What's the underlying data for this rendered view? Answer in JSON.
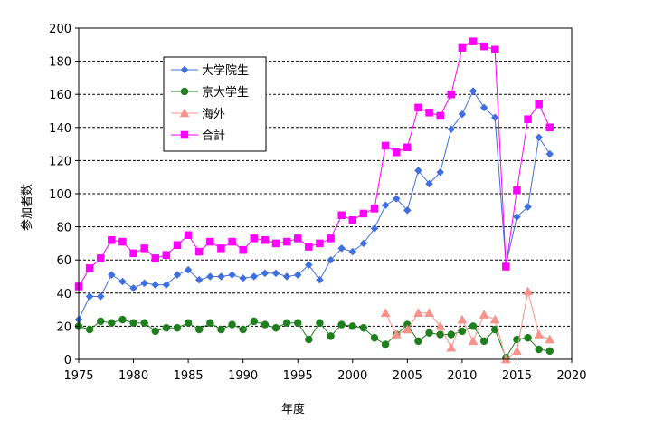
{
  "chart_data": {
    "type": "line",
    "xlabel": "年度",
    "ylabel": "参加者数",
    "xlim": [
      1975,
      2020
    ],
    "ylim": [
      0,
      200
    ],
    "xticks": [
      1975,
      1980,
      1985,
      1990,
      1995,
      2000,
      2005,
      2010,
      2015,
      2020
    ],
    "yticks": [
      0,
      20,
      40,
      60,
      80,
      100,
      120,
      140,
      160,
      180,
      200
    ],
    "grid": "horizontal dashed",
    "legend_position": "top-left",
    "series": [
      {
        "name": "大学院生",
        "color": "#3f6fdf",
        "marker": "diamond",
        "x": [
          1975,
          1976,
          1977,
          1978,
          1979,
          1980,
          1981,
          1982,
          1983,
          1984,
          1985,
          1986,
          1987,
          1988,
          1989,
          1990,
          1991,
          1992,
          1993,
          1994,
          1995,
          1996,
          1997,
          1998,
          1999,
          2000,
          2001,
          2002,
          2003,
          2004,
          2005,
          2006,
          2007,
          2008,
          2009,
          2010,
          2011,
          2012,
          2013,
          2014,
          2015,
          2016,
          2017,
          2018
        ],
        "values": [
          24,
          38,
          38,
          51,
          47,
          43,
          46,
          45,
          45,
          51,
          54,
          48,
          50,
          50,
          51,
          49,
          50,
          52,
          52,
          50,
          51,
          57,
          48,
          60,
          67,
          65,
          70,
          79,
          93,
          97,
          90,
          114,
          106,
          113,
          139,
          148,
          162,
          152,
          146,
          57,
          86,
          92,
          134,
          124
        ]
      },
      {
        "name": "京大学生",
        "color": "#1f7f1f",
        "marker": "circle",
        "x": [
          1975,
          1976,
          1977,
          1978,
          1979,
          1980,
          1981,
          1982,
          1983,
          1984,
          1985,
          1986,
          1987,
          1988,
          1989,
          1990,
          1991,
          1992,
          1993,
          1994,
          1995,
          1996,
          1997,
          1998,
          1999,
          2000,
          2001,
          2002,
          2003,
          2004,
          2005,
          2006,
          2007,
          2008,
          2009,
          2010,
          2011,
          2012,
          2013,
          2014,
          2015,
          2016,
          2017,
          2018
        ],
        "values": [
          20,
          18,
          23,
          22,
          24,
          22,
          22,
          17,
          19,
          19,
          22,
          18,
          22,
          18,
          21,
          18,
          23,
          21,
          19,
          22,
          22,
          12,
          22,
          14,
          21,
          20,
          19,
          13,
          9,
          15,
          21,
          11,
          16,
          15,
          15,
          17,
          20,
          11,
          18,
          1,
          12,
          13,
          6,
          5
        ]
      },
      {
        "name": "海外",
        "color": "#f8938c",
        "marker": "triangle",
        "x": [
          2003,
          2004,
          2005,
          2006,
          2007,
          2008,
          2009,
          2010,
          2011,
          2012,
          2013,
          2014,
          2015,
          2016,
          2017,
          2018
        ],
        "values": [
          28,
          15,
          18,
          28,
          28,
          20,
          7,
          24,
          11,
          27,
          24,
          0,
          5,
          41,
          15,
          12
        ]
      },
      {
        "name": "合計",
        "color": "#ff00ff",
        "marker": "square",
        "x": [
          1975,
          1976,
          1977,
          1978,
          1979,
          1980,
          1981,
          1982,
          1983,
          1984,
          1985,
          1986,
          1987,
          1988,
          1989,
          1990,
          1991,
          1992,
          1993,
          1994,
          1995,
          1996,
          1997,
          1998,
          1999,
          2000,
          2001,
          2002,
          2003,
          2004,
          2005,
          2006,
          2007,
          2008,
          2009,
          2010,
          2011,
          2012,
          2013,
          2014,
          2015,
          2016,
          2017,
          2018
        ],
        "values": [
          44,
          55,
          61,
          72,
          71,
          64,
          67,
          61,
          63,
          69,
          75,
          65,
          71,
          67,
          71,
          66,
          73,
          72,
          70,
          71,
          73,
          68,
          70,
          73,
          87,
          84,
          88,
          91,
          129,
          125,
          128,
          152,
          149,
          147,
          160,
          188,
          192,
          189,
          187,
          56,
          102,
          145,
          154,
          140
        ]
      }
    ]
  }
}
